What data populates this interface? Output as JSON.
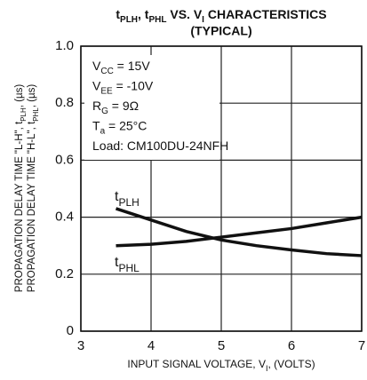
{
  "chart_data": {
    "type": "line",
    "title": [
      {
        "text": "t"
      },
      {
        "text": "PLH",
        "sub": true
      },
      {
        "text": ", t"
      },
      {
        "text": "PHL",
        "sub": true
      },
      {
        "text": " VS. V"
      },
      {
        "text": "I",
        "sub": true
      },
      {
        "text": " CHARACTERISTICS"
      }
    ],
    "subtitle": "(TYPICAL)",
    "x_label": [
      {
        "text": "INPUT SIGNAL VOLTAGE, V"
      },
      {
        "text": "I",
        "sub": true
      },
      {
        "text": ", (VOLTS)"
      }
    ],
    "y_label": [
      [
        {
          "text": "PROPAGATION DELAY TIME \"L-H\", t"
        },
        {
          "text": "PLH",
          "sub": true
        },
        {
          "text": ", (µs)"
        }
      ],
      [
        {
          "text": "PROPAGATION DELAY TIME \"H-L\", t"
        },
        {
          "text": "PHL",
          "sub": true
        },
        {
          "text": ", (µs)"
        }
      ]
    ],
    "annotations": [
      [
        {
          "text": "V"
        },
        {
          "text": "CC",
          "sub": true
        },
        {
          "text": " = 15V"
        }
      ],
      [
        {
          "text": "V"
        },
        {
          "text": "EE",
          "sub": true
        },
        {
          "text": " = -10V"
        }
      ],
      [
        {
          "text": "R"
        },
        {
          "text": "G",
          "sub": true
        },
        {
          "text": " = 9Ω"
        }
      ],
      [
        {
          "text": "T"
        },
        {
          "text": "a",
          "sub": true
        },
        {
          "text": " = 25°C"
        }
      ],
      [
        {
          "text": "Load: CM100DU-24NFH"
        }
      ]
    ],
    "x": [
      3.5,
      4,
      4.5,
      5,
      5.5,
      6,
      6.5,
      7
    ],
    "series": [
      {
        "name": [
          {
            "text": "t"
          },
          {
            "text": "PLH",
            "sub": true
          }
        ],
        "color": "#111111",
        "values": [
          0.43,
          0.39,
          0.35,
          0.32,
          0.3,
          0.285,
          0.272,
          0.265
        ]
      },
      {
        "name": [
          {
            "text": "t"
          },
          {
            "text": "PHL",
            "sub": true
          }
        ],
        "color": "#111111",
        "values": [
          0.3,
          0.305,
          0.315,
          0.33,
          0.345,
          0.36,
          0.38,
          0.4
        ]
      }
    ],
    "xlim": [
      3,
      7
    ],
    "xticks": [
      3,
      4,
      5,
      6,
      7
    ],
    "ylim": [
      0,
      1
    ],
    "yticks": [
      0,
      0.2,
      0.4,
      0.6,
      0.8,
      {
        "value": 1,
        "label": "1.0"
      }
    ],
    "grid": true
  }
}
